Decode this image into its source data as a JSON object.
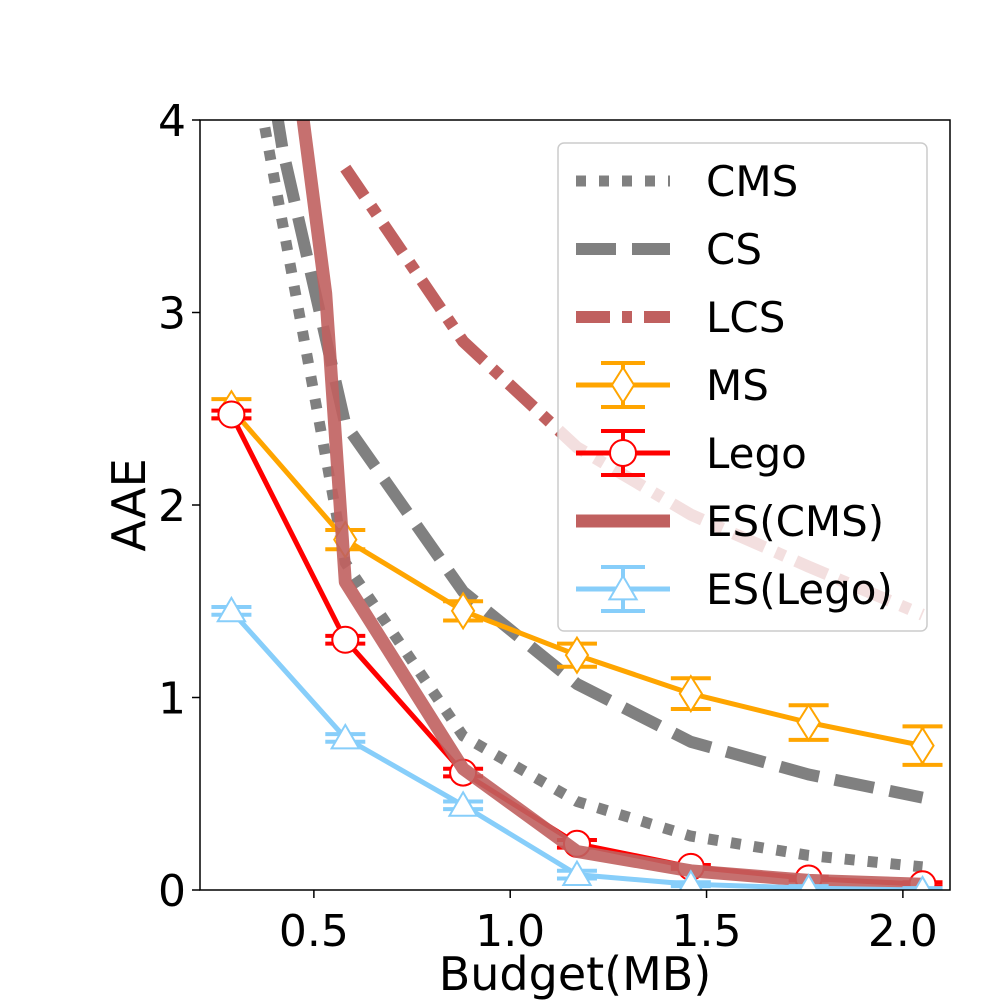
{
  "chart_data": {
    "type": "line",
    "title": "",
    "xlabel": "Budget(MB)",
    "ylabel": "AAE",
    "xlim": [
      0.21,
      2.12
    ],
    "ylim": [
      0,
      4
    ],
    "xticks": [
      "0.5",
      "1.0",
      "1.5",
      "2.0"
    ],
    "yticks": [
      "0",
      "1",
      "2",
      "3",
      "4"
    ],
    "grid": false,
    "legend_position": "top-right",
    "series": [
      {
        "name": "CMS",
        "style": "dotted",
        "color": "#808080",
        "x": [
          0.29,
          0.58,
          0.88,
          1.17,
          1.46,
          1.76,
          2.05
        ],
        "y": [
          4.9,
          1.7,
          0.8,
          0.46,
          0.28,
          0.18,
          0.12
        ]
      },
      {
        "name": "CS",
        "style": "dashed",
        "color": "#808080",
        "x": [
          0.29,
          0.42,
          0.58,
          0.88,
          1.17,
          1.46,
          1.76,
          2.05
        ],
        "y": [
          5.5,
          3.85,
          2.42,
          1.55,
          1.07,
          0.77,
          0.6,
          0.48
        ]
      },
      {
        "name": "LCS",
        "style": "dashdot",
        "color": "#c0605f",
        "x": [
          0.58,
          0.88,
          1.17,
          1.46,
          1.76,
          2.05
        ],
        "y": [
          3.75,
          2.85,
          2.3,
          1.95,
          1.68,
          1.43
        ]
      },
      {
        "name": "MS",
        "style": "solid",
        "marker": "diamond",
        "color": "#ffa500",
        "x": [
          0.29,
          0.58,
          0.88,
          1.17,
          1.46,
          1.76,
          2.05
        ],
        "y": [
          2.5,
          1.82,
          1.45,
          1.22,
          1.02,
          0.87,
          0.75
        ],
        "err": [
          0.05,
          0.05,
          0.05,
          0.06,
          0.08,
          0.09,
          0.1
        ]
      },
      {
        "name": "Lego",
        "style": "solid",
        "marker": "circle",
        "color": "#ff0000",
        "x": [
          0.29,
          0.58,
          0.88,
          1.17,
          1.46,
          1.76,
          2.05
        ],
        "y": [
          2.47,
          1.3,
          0.61,
          0.24,
          0.12,
          0.06,
          0.03
        ],
        "err": [
          0.02,
          0.02,
          0.02,
          0.02,
          0.01,
          0.01,
          0.01
        ]
      },
      {
        "name": "ES(CMS)",
        "style": "solid-thick",
        "color": "#c0605f",
        "x": [
          0.29,
          0.46,
          0.53,
          0.58,
          0.88,
          1.17,
          1.46,
          1.76,
          2.05
        ],
        "y": [
          8.0,
          4.2,
          3.1,
          1.6,
          0.63,
          0.2,
          0.1,
          0.05,
          0.03
        ]
      },
      {
        "name": "ES(Lego)",
        "style": "solid",
        "marker": "triangle",
        "color": "#87cefa",
        "x": [
          0.29,
          0.58,
          0.88,
          1.17,
          1.46,
          1.76,
          2.05
        ],
        "y": [
          1.45,
          0.79,
          0.44,
          0.08,
          0.03,
          0.01,
          0.0
        ],
        "err": [
          0.02,
          0.02,
          0.02,
          0.02,
          0.01,
          0.01,
          0.01
        ]
      }
    ]
  }
}
